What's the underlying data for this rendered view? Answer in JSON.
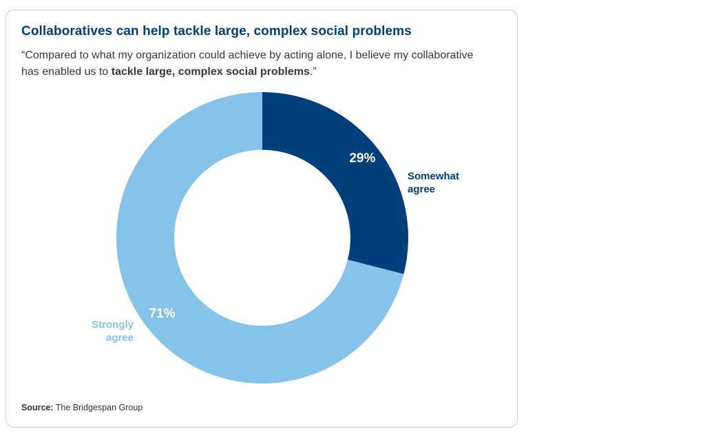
{
  "chart_data": {
    "type": "pie",
    "title": "Collaboratives can help tackle large, complex social problems",
    "subtitle": {
      "pre": "“Compared to what my organization could achieve by acting alone, I believe my collaborative has enabled us to ",
      "bold": "tackle large, complex social problems",
      "post": ".”"
    },
    "slices": [
      {
        "label_lines": [
          "Somewhat",
          "agree"
        ],
        "value": 29,
        "value_label": "29%",
        "color": "#003f7a"
      },
      {
        "label_lines": [
          "Strongly",
          "agree"
        ],
        "value": 71,
        "value_label": "71%",
        "color": "#86c3e9"
      }
    ],
    "source_label": "Source:",
    "source_text": "The Bridgespan Group"
  }
}
